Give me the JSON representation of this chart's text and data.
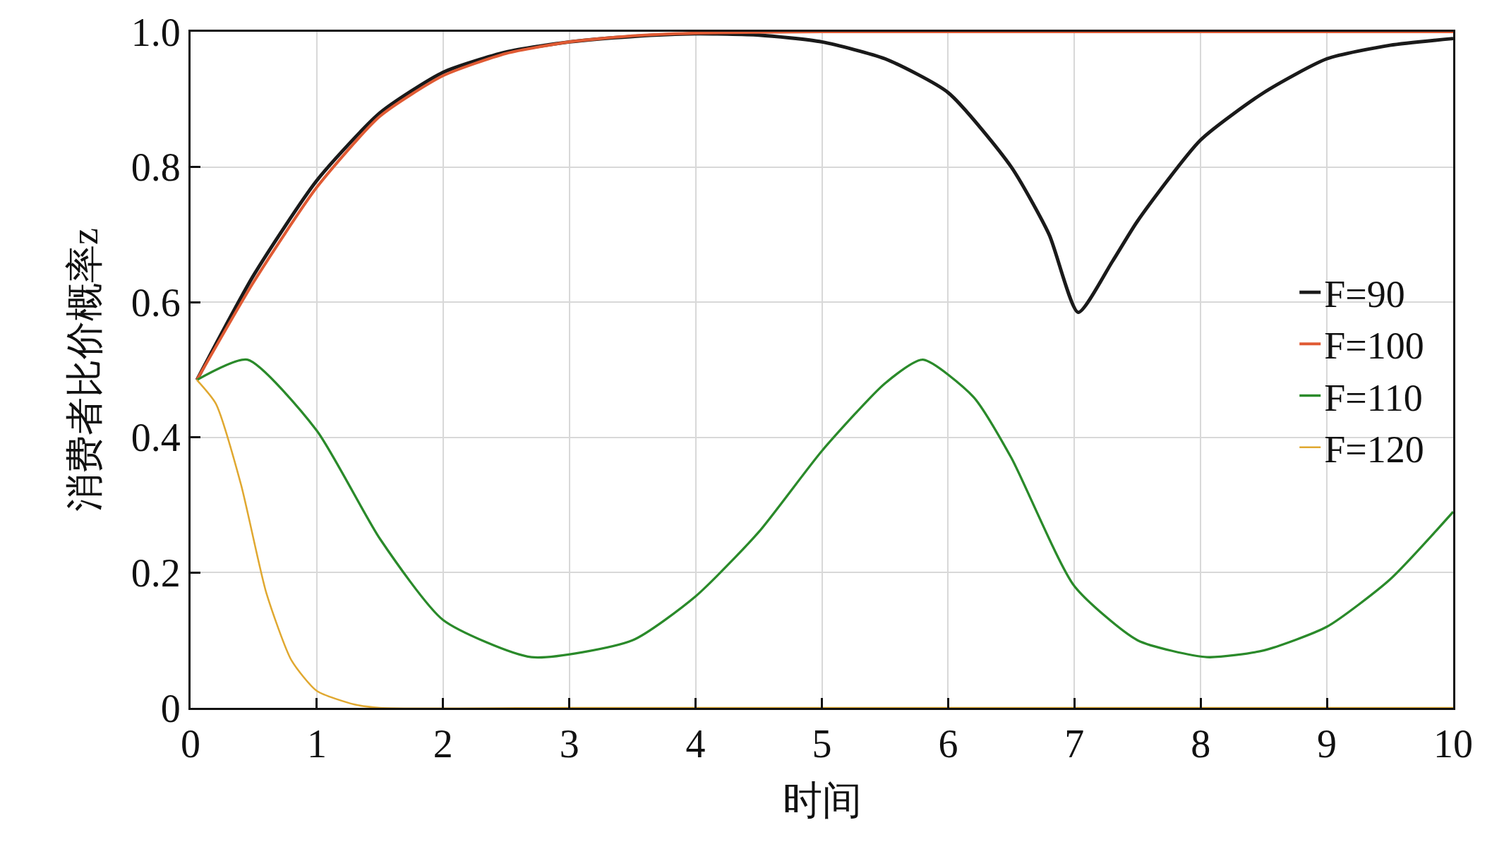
{
  "chart_data": {
    "type": "line",
    "xlabel": "时间",
    "ylabel": "消费者比价概率z",
    "xlim": [
      0,
      10
    ],
    "ylim": [
      0,
      1
    ],
    "xticks": [
      0,
      1,
      2,
      3,
      4,
      5,
      6,
      7,
      8,
      9,
      10
    ],
    "yticks": [
      0,
      0.2,
      0.4,
      0.6,
      0.8,
      {
        "value": 1,
        "label": "1.0"
      }
    ],
    "grid": true,
    "legend": "right",
    "line_style": "solid",
    "marker": "none",
    "series": [
      {
        "name": "F=90",
        "color": "#1a1a1a",
        "x": [
          0.05,
          0.5,
          1,
          1.5,
          2,
          2.5,
          3,
          3.5,
          4,
          4.5,
          5,
          5.5,
          6,
          6.5,
          6.8,
          7.03,
          7.3,
          7.5,
          8,
          8.5,
          9,
          9.5,
          10
        ],
        "values": [
          0.485,
          0.64,
          0.78,
          0.88,
          0.94,
          0.97,
          0.985,
          0.993,
          0.997,
          0.995,
          0.985,
          0.96,
          0.91,
          0.8,
          0.7,
          0.585,
          0.66,
          0.72,
          0.84,
          0.91,
          0.96,
          0.98,
          0.99
        ]
      },
      {
        "name": "F=100",
        "color": "#e05a33",
        "x": [
          0.05,
          0.5,
          1,
          1.5,
          2,
          2.5,
          3,
          3.5,
          4,
          5,
          6,
          7,
          8,
          9,
          10
        ],
        "values": [
          0.485,
          0.63,
          0.77,
          0.875,
          0.935,
          0.968,
          0.985,
          0.994,
          0.998,
          1,
          1,
          1,
          1,
          1,
          1
        ]
      },
      {
        "name": "F=110",
        "color": "#2a8a2a",
        "x": [
          0.05,
          0.45,
          1,
          1.5,
          2,
          2.7,
          3.5,
          4,
          4.5,
          5,
          5.5,
          5.8,
          6.2,
          6.5,
          7,
          7.5,
          8.05,
          8.5,
          9,
          9.5,
          10
        ],
        "values": [
          0.485,
          0.515,
          0.41,
          0.25,
          0.13,
          0.075,
          0.1,
          0.165,
          0.26,
          0.38,
          0.48,
          0.515,
          0.46,
          0.37,
          0.18,
          0.1,
          0.075,
          0.085,
          0.12,
          0.19,
          0.29
        ]
      },
      {
        "name": "F=120",
        "color": "#e0a830",
        "x": [
          0.05,
          0.2,
          0.4,
          0.6,
          0.8,
          1,
          1.3,
          1.5,
          3,
          5,
          7,
          10
        ],
        "values": [
          0.485,
          0.45,
          0.33,
          0.17,
          0.07,
          0.025,
          0.005,
          0,
          0,
          0,
          0,
          0
        ]
      }
    ]
  }
}
